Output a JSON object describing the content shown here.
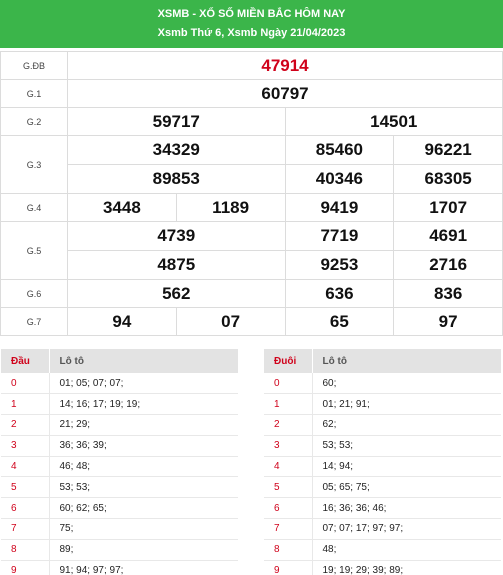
{
  "header": {
    "title": "XSMB - XỔ SỐ MIỀN BẮC HÔM NAY",
    "subtitle": "Xsmb Thứ 6, Xsmb Ngày 21/04/2023"
  },
  "results": {
    "gdb": {
      "label": "G.ĐB",
      "numbers": [
        "47914"
      ]
    },
    "g1": {
      "label": "G.1",
      "numbers": [
        "60797"
      ]
    },
    "g2": {
      "label": "G.2",
      "numbers": [
        "59717",
        "14501"
      ]
    },
    "g3": {
      "label": "G.3",
      "numbers": [
        "34329",
        "85460",
        "96221",
        "89853",
        "40346",
        "68305"
      ]
    },
    "g4": {
      "label": "G.4",
      "numbers": [
        "3448",
        "1189",
        "9419",
        "1707"
      ]
    },
    "g5": {
      "label": "G.5",
      "numbers": [
        "4739",
        "7719",
        "4691",
        "4875",
        "9253",
        "2716"
      ]
    },
    "g6": {
      "label": "G.6",
      "numbers": [
        "562",
        "636",
        "836"
      ]
    },
    "g7": {
      "label": "G.7",
      "numbers": [
        "94",
        "07",
        "65",
        "97"
      ]
    }
  },
  "loto_dau": {
    "head_label": "Đầu",
    "col_label": "Lô tô",
    "rows": [
      {
        "k": "0",
        "v": "01; 05; 07; 07;"
      },
      {
        "k": "1",
        "v": "14; 16; 17; 19; 19;"
      },
      {
        "k": "2",
        "v": "21; 29;"
      },
      {
        "k": "3",
        "v": "36; 36; 39;"
      },
      {
        "k": "4",
        "v": "46; 48;"
      },
      {
        "k": "5",
        "v": "53; 53;"
      },
      {
        "k": "6",
        "v": "60; 62; 65;"
      },
      {
        "k": "7",
        "v": "75;"
      },
      {
        "k": "8",
        "v": "89;"
      },
      {
        "k": "9",
        "v": "91; 94; 97; 97;"
      }
    ]
  },
  "loto_duoi": {
    "head_label": "Đuôi",
    "col_label": "Lô tô",
    "rows": [
      {
        "k": "0",
        "v": "60;"
      },
      {
        "k": "1",
        "v": "01; 21; 91;"
      },
      {
        "k": "2",
        "v": "62;"
      },
      {
        "k": "3",
        "v": "53; 53;"
      },
      {
        "k": "4",
        "v": "14; 94;"
      },
      {
        "k": "5",
        "v": "05; 65; 75;"
      },
      {
        "k": "6",
        "v": "16; 36; 36; 46;"
      },
      {
        "k": "7",
        "v": "07; 07; 17; 97; 97;"
      },
      {
        "k": "8",
        "v": "48;"
      },
      {
        "k": "9",
        "v": "19; 19; 29; 39; 89;"
      }
    ]
  },
  "colors": {
    "header_bg": "#3bb54a",
    "accent_red": "#d0021b"
  }
}
